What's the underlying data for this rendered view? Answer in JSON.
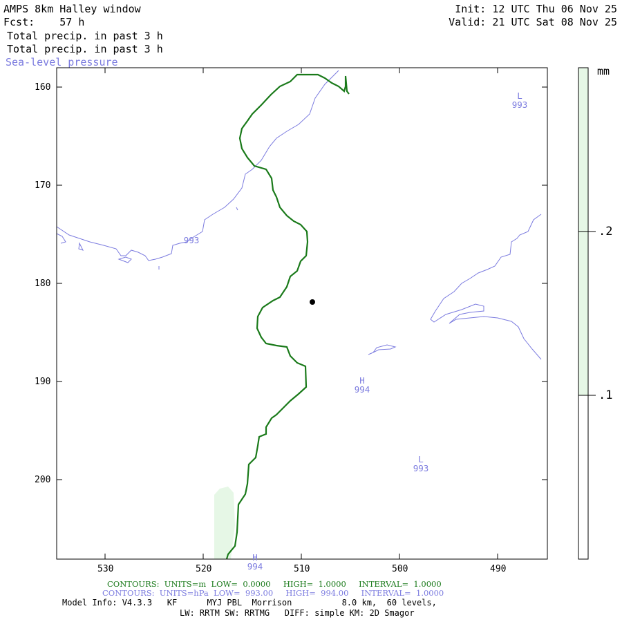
{
  "header": {
    "title": "AMPS 8km Halley window",
    "fcst": "Fcst:    57 h",
    "init": "Init: 12 UTC Thu 06 Nov 25",
    "valid": "Valid: 21 UTC Sat 08 Nov 25",
    "field1": "Total precip. in past 3 h",
    "field2": "Total precip. in past 3 h",
    "field3": "Sea-level pressure"
  },
  "colors": {
    "green_contour": "#1a7a1a",
    "pressure_contour": "#7b7bdf",
    "precip_fill": "#e6f7e6",
    "frame": "#000000"
  },
  "map": {
    "y_ticks": [
      "160",
      "170",
      "180",
      "190",
      "200"
    ],
    "x_ticks": [
      "530",
      "520",
      "510",
      "500",
      "490"
    ],
    "pressure_labels": [
      {
        "text": "L",
        "value": "993"
      },
      {
        "text": "",
        "value": "993"
      },
      {
        "text": "H",
        "value": "994"
      },
      {
        "text": "L",
        "value": "993"
      },
      {
        "text": "H",
        "value": "994"
      }
    ],
    "station_marker_icon": "dot-icon"
  },
  "legend": {
    "unit": "mm",
    "labels": [
      ".2",
      ".1"
    ]
  },
  "footer": {
    "contours1": "CONTOURS:  UNITS=m  LOW=  0.0000     HIGH=  1.0000     INTERVAL=  1.0000",
    "contours2": "CONTOURS:  UNITS=hPa  LOW=  993.00     HIGH=  994.00     INTERVAL=  1.0000",
    "model_info": "Model Info: V4.3.3   KF      MYJ PBL  Morrison          8.0 km,  60 levels,",
    "model_info2": "LW: RRTM SW: RRTMG   DIFF: simple KM: 2D Smagor"
  }
}
